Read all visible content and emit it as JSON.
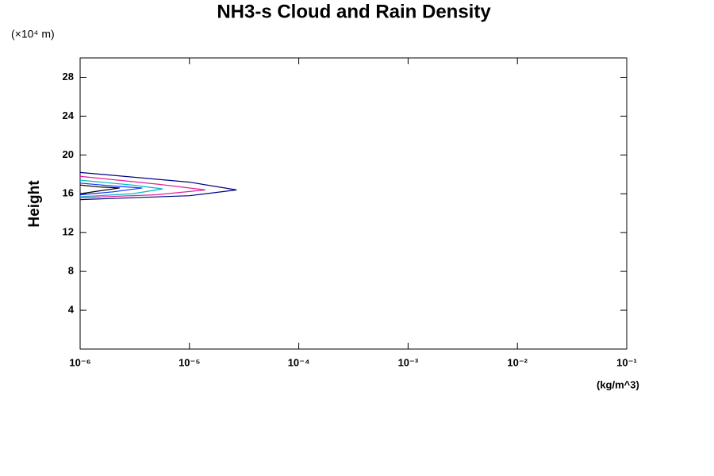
{
  "chart_data": {
    "type": "line",
    "title": "NH3-s Cloud and Rain Density",
    "y_label": "Height",
    "y_unit": "(×10⁴ m)",
    "x_unit": "(kg/m^3)",
    "x_scale": "log",
    "xlim": [
      1e-06,
      0.1
    ],
    "xticks": [
      {
        "value": 1e-06,
        "label": "10⁻⁶"
      },
      {
        "value": 1e-05,
        "label": "10⁻⁵"
      },
      {
        "value": 0.0001,
        "label": "10⁻⁴"
      },
      {
        "value": 0.001,
        "label": "10⁻³"
      },
      {
        "value": 0.01,
        "label": "10⁻²"
      },
      {
        "value": 0.1,
        "label": "10⁻¹"
      }
    ],
    "ylim": [
      0,
      30
    ],
    "yticks": [
      4,
      8,
      12,
      16,
      20,
      24,
      28
    ],
    "series": [
      {
        "color": "#000080",
        "x": [
          1e-06,
          1e-05,
          2.7e-05,
          1e-05,
          1e-06
        ],
        "values": [
          18.2,
          17.2,
          16.4,
          15.8,
          15.4
        ]
      },
      {
        "color": "#e0209a",
        "x": [
          1e-06,
          5e-06,
          1.4e-05,
          5e-06,
          1e-06
        ],
        "values": [
          17.8,
          17.0,
          16.4,
          15.9,
          15.6
        ]
      },
      {
        "color": "#00b8c8",
        "x": [
          1e-06,
          3e-06,
          5.7e-06,
          3e-06,
          1e-06
        ],
        "values": [
          17.4,
          16.9,
          16.5,
          16.0,
          15.7
        ]
      },
      {
        "color": "#1030ff",
        "x": [
          1e-06,
          2e-06,
          3.7e-06,
          2e-06,
          1e-06
        ],
        "values": [
          17.1,
          16.8,
          16.6,
          16.2,
          15.9
        ]
      },
      {
        "color": "#000000",
        "x": [
          1e-06,
          1.5e-06,
          2.3e-06,
          1.5e-06,
          1e-06
        ],
        "values": [
          16.9,
          16.7,
          16.6,
          16.3,
          16.0
        ]
      }
    ]
  }
}
